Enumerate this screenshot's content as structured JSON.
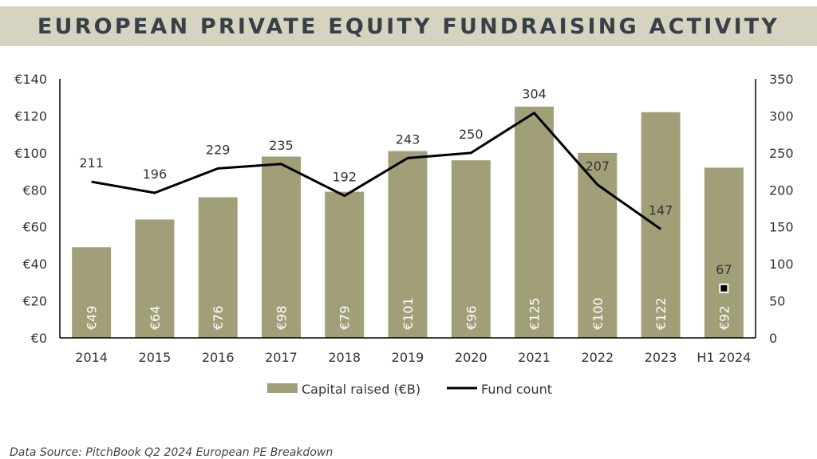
{
  "title": "EUROPEAN PRIVATE EQUITY FUNDRAISING ACTIVITY",
  "source": "Data Source:  PitchBook Q2 2024 European PE Breakdown",
  "colors": {
    "bar": "#a19f78",
    "line": "#000000",
    "title_bg": "#d6d4c0",
    "title_text": "#3a3f47",
    "text": "#333333"
  },
  "chart_data": {
    "type": "bar",
    "categories": [
      "2014",
      "2015",
      "2016",
      "2017",
      "2018",
      "2019",
      "2020",
      "2021",
      "2022",
      "2023",
      "H1 2024"
    ],
    "series": [
      {
        "name": "Capital raised (€B)",
        "type": "bar",
        "axis": "left",
        "values": [
          49,
          64,
          76,
          98,
          79,
          101,
          96,
          125,
          100,
          122,
          92
        ],
        "labels": [
          "€49",
          "€64",
          "€76",
          "€98",
          "€79",
          "€101",
          "€96",
          "€125",
          "€100",
          "€122",
          "€92"
        ]
      },
      {
        "name": "Fund count",
        "type": "line",
        "axis": "right",
        "values": [
          211,
          196,
          229,
          235,
          192,
          243,
          250,
          304,
          207,
          147,
          67
        ],
        "labels": [
          "211",
          "196",
          "229",
          "235",
          "192",
          "243",
          "250",
          "304",
          "207",
          "147",
          "67"
        ]
      }
    ],
    "left_axis": {
      "ticks": [
        "€0",
        "€20",
        "€40",
        "€60",
        "€80",
        "€100",
        "€120",
        "€140"
      ],
      "ylim": [
        0,
        140
      ]
    },
    "right_axis": {
      "ticks": [
        "0",
        "50",
        "100",
        "150",
        "200",
        "250",
        "300",
        "350"
      ],
      "ylim": [
        0,
        350
      ]
    },
    "legend_position": "bottom",
    "grid": false
  }
}
